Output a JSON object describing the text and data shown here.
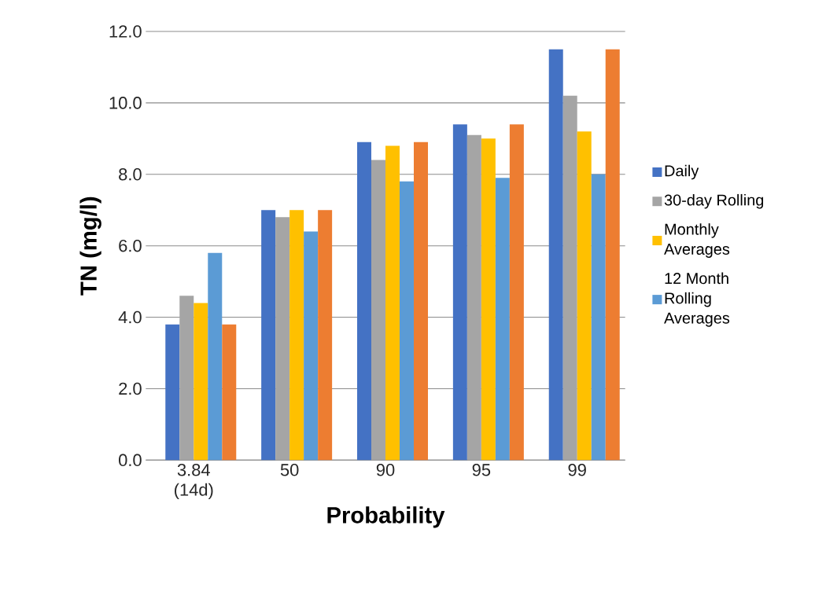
{
  "chart_data": {
    "type": "bar",
    "xlabel": "Probability",
    "ylabel": "TN (mg/l)",
    "categories": [
      "3.84 (14d)",
      "50",
      "90",
      "95",
      "99"
    ],
    "series": [
      {
        "name": "Daily",
        "color": "#4472c4",
        "values": [
          3.8,
          7.0,
          8.9,
          9.4,
          11.5
        ]
      },
      {
        "name": "30-day Rolling",
        "color": "#a5a5a5",
        "values": [
          4.6,
          6.8,
          8.4,
          9.1,
          10.2
        ]
      },
      {
        "name": "Monthly Averages",
        "color": "#ffc000",
        "values": [
          4.4,
          7.0,
          8.8,
          9.0,
          9.2
        ]
      },
      {
        "name": "12 Month Rolling Averages",
        "color": "#5b9bd5",
        "values": [
          5.8,
          6.4,
          7.8,
          7.9,
          8.0
        ]
      },
      {
        "color": "#ed7d31",
        "values": [
          3.8,
          7.0,
          8.9,
          9.4,
          11.5
        ]
      }
    ],
    "ylim": [
      0,
      12
    ],
    "yticks": [
      {
        "value": 0,
        "label": "0.0"
      },
      {
        "value": 2,
        "label": "2.0"
      },
      {
        "value": 4,
        "label": "4.0"
      },
      {
        "value": 6,
        "label": "6.0"
      },
      {
        "value": 8,
        "label": "8.0"
      },
      {
        "value": 10,
        "label": "10.0"
      },
      {
        "value": 12,
        "label": "12.0"
      }
    ],
    "grid": "y",
    "legend": "right"
  }
}
